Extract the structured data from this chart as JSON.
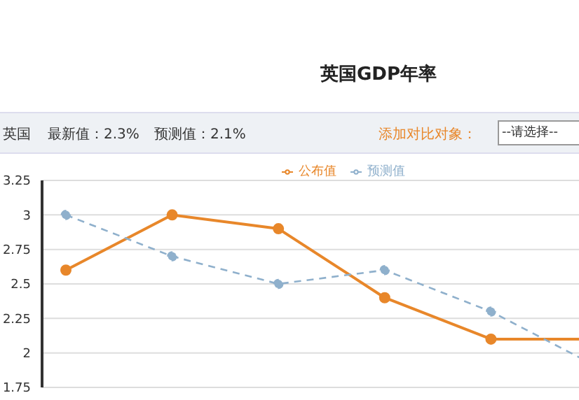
{
  "chart_data": {
    "type": "line",
    "title": "英国GDP年率",
    "annotations": [
      "英国",
      "最新值：2.3%",
      "预测值：2.1%",
      "添加对比对象：",
      "--请选择--"
    ],
    "categories": [
      null,
      null,
      null,
      null,
      null,
      null
    ],
    "series": [
      {
        "name": "公布值",
        "color": "#e8872a",
        "values": [
          2.6,
          3.0,
          2.9,
          2.4,
          2.1,
          2.1
        ],
        "line_style": "solid"
      },
      {
        "name": "预测值",
        "color": "#8fb0cc",
        "values": [
          3.0,
          2.7,
          2.5,
          2.6,
          2.3,
          1.9
        ],
        "line_style": "dashed"
      }
    ],
    "ylim": [
      1.75,
      3.25
    ],
    "yticks": [
      1.75,
      2,
      2.25,
      2.5,
      2.75,
      3,
      3.25
    ],
    "tick_labels": "y",
    "grid": true,
    "legend": "top",
    "marker": "circle"
  }
}
